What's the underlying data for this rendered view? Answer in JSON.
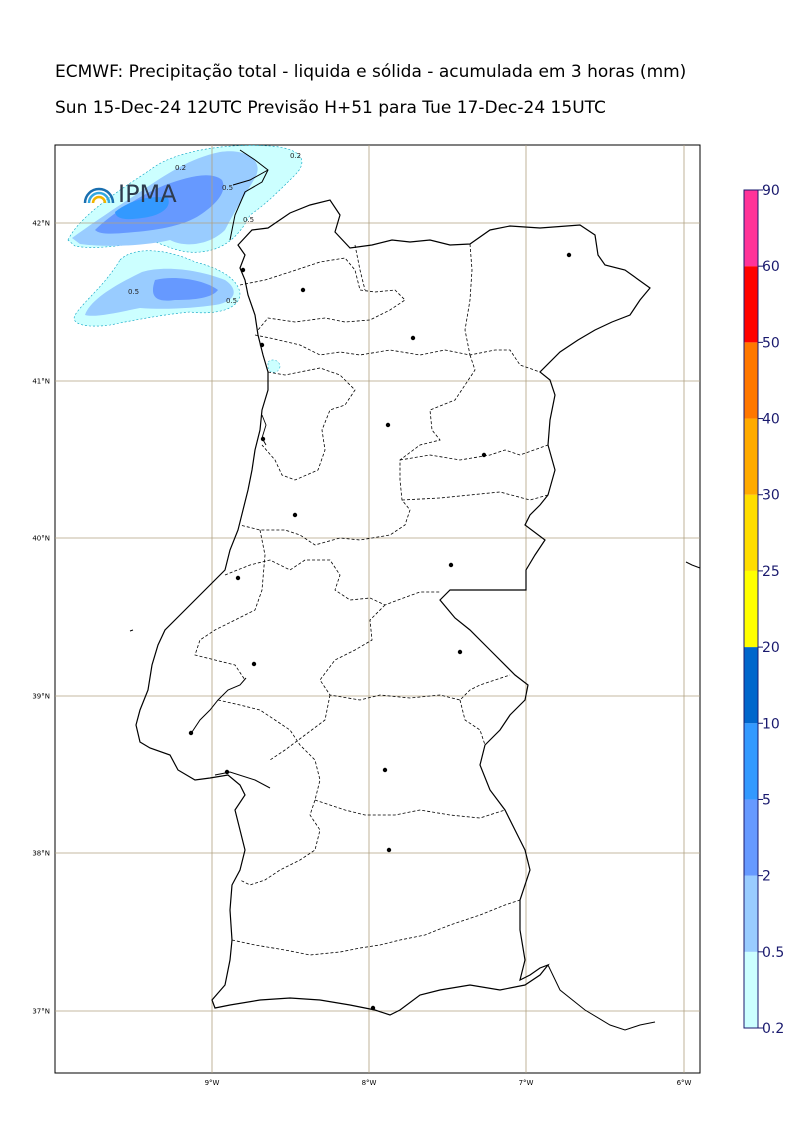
{
  "title_line1": "ECMWF: Precipitação total - liquida e sólida - acumulada em 3 horas (mm)",
  "title_line2": "Sun 15-Dec-24 12UTC Previsão H+51 para Tue 17-Dec-24 15UTC",
  "logo": {
    "text": "IPMA"
  },
  "axes": {
    "lat_ticks": [
      "42°N",
      "41°N",
      "40°N",
      "39°N",
      "38°N",
      "37°N"
    ],
    "lon_ticks": [
      "9°W",
      "8°W",
      "7°W",
      "6°W"
    ]
  },
  "colorbar": {
    "levels": [
      "0.2",
      "0.5",
      "2",
      "5",
      "10",
      "20",
      "25",
      "30",
      "40",
      "50",
      "60",
      "90"
    ],
    "colors": [
      "#ccffff",
      "#99ccff",
      "#6699ff",
      "#3399ff",
      "#0066cc",
      "#ffff00",
      "#ffdd00",
      "#ffaa00",
      "#ff7700",
      "#ff0000",
      "#ff3399"
    ]
  },
  "contour_labels": [
    "0.2",
    "0.5",
    "0.5",
    "0.5",
    "0.5",
    "0.2"
  ],
  "precip_colors": {
    "light": "#ccffff",
    "medium": "#99ccff",
    "heavy": "#6699ff",
    "heaviest": "#3399ff"
  }
}
